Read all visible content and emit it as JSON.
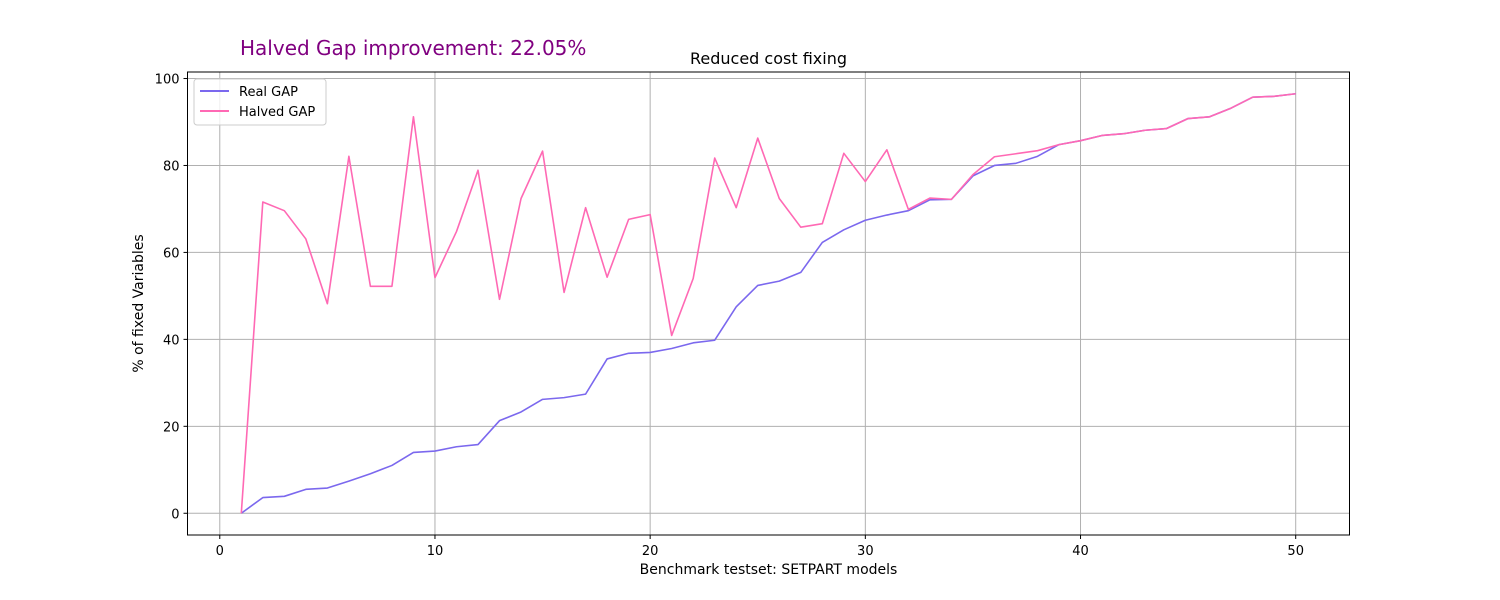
{
  "annotation": {
    "text": "Halved Gap improvement: 22.05%",
    "color": "#800080"
  },
  "chart_data": {
    "type": "line",
    "title": "Reduced cost fixing",
    "xlabel": "Benchmark testset: SETPART models",
    "ylabel": "% of fixed Variables",
    "xlim": [
      -1.5,
      52.5
    ],
    "ylim": [
      -5,
      101.5
    ],
    "xticks": [
      0,
      10,
      20,
      30,
      40,
      50
    ],
    "yticks": [
      0,
      20,
      40,
      60,
      80,
      100
    ],
    "grid": true,
    "legend_position": "top-left",
    "x": [
      1,
      2,
      3,
      4,
      5,
      6,
      7,
      8,
      9,
      10,
      11,
      12,
      13,
      14,
      15,
      16,
      17,
      18,
      19,
      20,
      21,
      22,
      23,
      24,
      25,
      26,
      27,
      28,
      29,
      30,
      31,
      32,
      33,
      34,
      35,
      36,
      37,
      38,
      39,
      40,
      41,
      42,
      43,
      44,
      45,
      46,
      47,
      48,
      49,
      50
    ],
    "series": [
      {
        "name": "Real GAP",
        "color": "#7b68ee",
        "values": [
          0,
          3.6,
          3.9,
          5.5,
          5.8,
          7.4,
          9.1,
          11.0,
          14.0,
          14.3,
          15.3,
          15.8,
          21.3,
          23.3,
          26.2,
          26.6,
          27.4,
          35.5,
          36.8,
          37.0,
          37.9,
          39.2,
          39.8,
          47.5,
          52.4,
          53.4,
          55.4,
          62.3,
          65.2,
          67.4,
          68.6,
          69.6,
          72.1,
          72.2,
          77.6,
          80.0,
          80.5,
          82.1,
          84.8,
          85.7,
          86.9,
          87.3,
          88.1,
          88.5,
          90.8,
          91.2,
          93.2,
          95.7,
          95.9,
          96.5
        ]
      },
      {
        "name": "Halved GAP",
        "color": "#ff69b4",
        "values": [
          0,
          71.6,
          69.6,
          63.1,
          48.2,
          82.1,
          52.2,
          52.2,
          91.2,
          54.2,
          64.8,
          78.9,
          49.2,
          72.4,
          83.3,
          50.8,
          70.3,
          54.3,
          67.6,
          68.7,
          40.9,
          54.0,
          81.7,
          70.3,
          86.3,
          72.4,
          65.8,
          66.6,
          82.8,
          76.3,
          83.6,
          69.9,
          72.5,
          72.2,
          77.9,
          82.0,
          82.7,
          83.4,
          84.8,
          85.7,
          86.9,
          87.3,
          88.1,
          88.5,
          90.8,
          91.2,
          93.2,
          95.7,
          95.9,
          96.5
        ]
      }
    ]
  }
}
